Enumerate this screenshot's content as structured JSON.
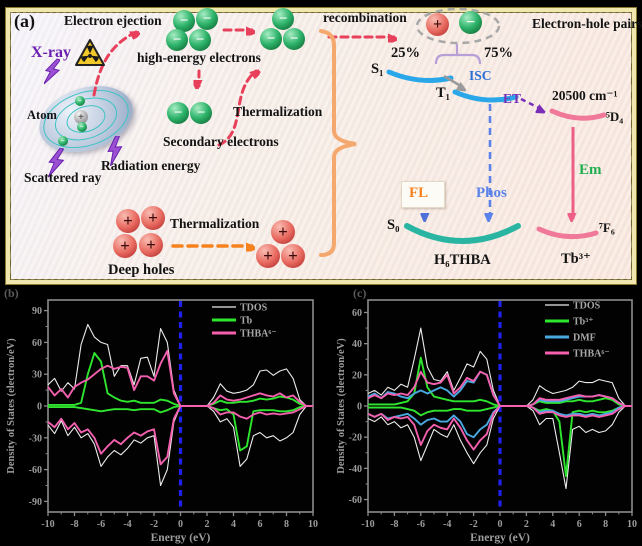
{
  "panel_a": {
    "label": "(a)",
    "electron_ejection": "Electron ejection",
    "xray": "X-ray",
    "high_energy_electrons": "high-energy electrons",
    "atom": "Atom",
    "secondary_electrons": "Secondary electrons",
    "thermalization_top": "Thermalization",
    "radiation_energy": "Radiation energy",
    "scattered_ray": "Scattered ray",
    "deep_holes": "Deep holes",
    "thermalization_bottom": "Thermalization",
    "recombination": "recombination",
    "electron_hole_pairs": "Electron-hole pairs",
    "pct_25": "25%",
    "pct_75": "75%",
    "s1": "S₁",
    "t1": "T₁",
    "s0": "S₀",
    "isc": "ISC",
    "et": "ET",
    "wavenumber": "20500 cm⁻¹",
    "d4": "⁵D₄",
    "f6": "⁷F₆",
    "fl": "FL",
    "phos": "Phos",
    "em": "Em",
    "h6thba": "H₆THBA",
    "tb3": "Tb³⁺",
    "electron_symbol": "−",
    "hole_symbol": "+",
    "nucleus_symbol": "+",
    "accent_colors": {
      "red_arrow": "#e8405a",
      "orange_arrow": "#f5821e",
      "brace": "#f5a86d",
      "purple": "#7a2fb8",
      "isc_blue": "#2a6fd6",
      "phos_blue": "#5b82ea",
      "em_green": "#1fae4e",
      "singlet_arc": "#2aa7e8",
      "ground_arc": "#2ab5a3",
      "tb_arc": "#f07898",
      "xray_purple": "#6a1fb0"
    }
  },
  "chart_data": [
    {
      "type": "line",
      "panel_label": "(b)",
      "xlabel": "Energy (eV)",
      "ylabel": "Density of States (electron/eV)",
      "xlim": [
        -10,
        10
      ],
      "ylim": [
        -100,
        100
      ],
      "x_ticks": [
        -10,
        -8,
        -6,
        -4,
        -2,
        0,
        2,
        4,
        6,
        8,
        10
      ],
      "y_ticks": [
        90,
        60,
        30,
        0,
        -30,
        -60,
        -90
      ],
      "fermi_line_x": 0,
      "fermi_color": "#2020ee",
      "legend_position": "top-right",
      "grid": false,
      "x_start": -10,
      "x_step": 0.5,
      "series": [
        {
          "name": "TDOS",
          "color": "#ececec",
          "spin_up": [
            20,
            26,
            14,
            22,
            16,
            58,
            77,
            65,
            60,
            58,
            28,
            38,
            38,
            20,
            45,
            46,
            28,
            73,
            60,
            15,
            0,
            0,
            0,
            0,
            0,
            8,
            21,
            14,
            12,
            13,
            15,
            20,
            33,
            34,
            29,
            33,
            35,
            26,
            6,
            0,
            0
          ],
          "spin_down": [
            -18,
            -26,
            -14,
            -28,
            -20,
            -30,
            -26,
            -36,
            -57,
            -48,
            -42,
            -46,
            -40,
            -32,
            -35,
            -30,
            -28,
            -75,
            -60,
            -15,
            0,
            0,
            0,
            0,
            0,
            -5,
            -15,
            -12,
            -20,
            -57,
            -50,
            -28,
            -25,
            -30,
            -28,
            -33,
            -30,
            -25,
            -8,
            0,
            0
          ]
        },
        {
          "name": "Tb",
          "color": "#2fe62f",
          "spin_up": [
            1,
            1,
            1,
            1,
            1,
            3,
            30,
            50,
            42,
            12,
            8,
            5,
            4,
            5,
            3,
            3,
            3,
            6,
            5,
            2,
            0,
            0,
            0,
            0,
            0,
            2,
            5,
            3,
            3,
            4,
            4,
            5,
            7,
            6,
            7,
            9,
            8,
            6,
            2,
            0,
            0
          ],
          "spin_down": [
            -1,
            -1,
            -1,
            -1,
            -1,
            -2,
            -3,
            -4,
            -5,
            -4,
            -3,
            -3,
            -3,
            -4,
            -3,
            -3,
            -3,
            -6,
            -4,
            -1,
            0,
            0,
            0,
            0,
            0,
            -2,
            -4,
            -3,
            -8,
            -42,
            -38,
            -5,
            -4,
            -4,
            -4,
            -5,
            -5,
            -4,
            -1,
            0,
            0
          ]
        },
        {
          "name": "THBA⁶⁻",
          "color": "#f45fae",
          "spin_up": [
            18,
            10,
            16,
            8,
            18,
            22,
            25,
            30,
            35,
            38,
            35,
            37,
            36,
            15,
            28,
            28,
            24,
            40,
            52,
            12,
            0,
            0,
            0,
            0,
            0,
            3,
            10,
            6,
            5,
            6,
            8,
            10,
            12,
            10,
            9,
            12,
            8,
            10,
            4,
            0,
            0
          ],
          "spin_down": [
            -15,
            -20,
            -12,
            -22,
            -16,
            -25,
            -22,
            -30,
            -45,
            -38,
            -32,
            -36,
            -30,
            -25,
            -28,
            -24,
            -22,
            -55,
            -48,
            -12,
            0,
            0,
            0,
            0,
            0,
            -2,
            -8,
            -6,
            -6,
            -10,
            -12,
            -8,
            -6,
            -8,
            -7,
            -8,
            -7,
            -6,
            -3,
            0,
            0
          ]
        }
      ]
    },
    {
      "type": "line",
      "panel_label": "(c)",
      "xlabel": "Energy (eV)",
      "ylabel": "Density of States (electron/eV)",
      "xlim": [
        -10,
        10
      ],
      "ylim": [
        -68,
        68
      ],
      "x_ticks": [
        -10,
        -8,
        -6,
        -4,
        -2,
        0,
        2,
        4,
        6,
        8,
        10
      ],
      "y_ticks": [
        60,
        40,
        20,
        0,
        -20,
        -40,
        -60
      ],
      "fermi_line_x": 0,
      "fermi_color": "#2020ee",
      "legend_position": "top-right",
      "grid": false,
      "x_start": -10,
      "x_step": 0.5,
      "series": [
        {
          "name": "TDOS",
          "color": "#ececec",
          "spin_up": [
            8,
            10,
            7,
            12,
            10,
            14,
            12,
            30,
            50,
            25,
            17,
            16,
            22,
            10,
            18,
            27,
            25,
            35,
            30,
            10,
            0,
            0,
            0,
            0,
            0,
            4,
            13,
            10,
            8,
            9,
            10,
            12,
            16,
            15,
            15,
            17,
            16,
            15,
            5,
            0,
            0
          ],
          "spin_down": [
            -8,
            -10,
            -7,
            -12,
            -10,
            -14,
            -12,
            -20,
            -35,
            -25,
            -15,
            -18,
            -20,
            -12,
            -22,
            -30,
            -37,
            -30,
            -25,
            -8,
            0,
            0,
            0,
            0,
            0,
            -3,
            -12,
            -8,
            -8,
            -30,
            -53,
            -15,
            -13,
            -17,
            -15,
            -17,
            -16,
            -12,
            -4,
            0,
            0
          ]
        },
        {
          "name": "Tb³⁺",
          "color": "#2fe62f",
          "spin_up": [
            1,
            1,
            1,
            1,
            1,
            2,
            3,
            8,
            31,
            12,
            6,
            5,
            4,
            3,
            3,
            3,
            3,
            4,
            3,
            1,
            0,
            0,
            0,
            0,
            0,
            1,
            3,
            2,
            2,
            2,
            3,
            3,
            4,
            3,
            3,
            4,
            5,
            4,
            1,
            0,
            0
          ],
          "spin_down": [
            -1,
            -1,
            -1,
            -1,
            -1,
            -1,
            -2,
            -3,
            -6,
            -4,
            -3,
            -3,
            -3,
            -2,
            -2,
            -3,
            -3,
            -3,
            -2,
            -1,
            0,
            0,
            0,
            0,
            0,
            -1,
            -3,
            -2,
            -3,
            -10,
            -45,
            -4,
            -3,
            -4,
            -3,
            -4,
            -4,
            -3,
            -1,
            0,
            0
          ]
        },
        {
          "name": "DMF",
          "color": "#49a8e0",
          "spin_up": [
            6,
            8,
            5,
            9,
            8,
            6,
            5,
            8,
            10,
            8,
            10,
            12,
            10,
            6,
            10,
            16,
            15,
            22,
            20,
            7,
            0,
            0,
            0,
            0,
            0,
            1,
            4,
            3,
            3,
            3,
            4,
            5,
            6,
            6,
            6,
            7,
            6,
            5,
            2,
            0,
            0
          ],
          "spin_down": [
            -5,
            -7,
            -5,
            -8,
            -7,
            -6,
            -5,
            -8,
            -12,
            -9,
            -8,
            -10,
            -10,
            -6,
            -10,
            -18,
            -20,
            -15,
            -12,
            -4,
            0,
            0,
            0,
            0,
            0,
            -1,
            -4,
            -3,
            -3,
            -5,
            -6,
            -5,
            -5,
            -6,
            -5,
            -6,
            -5,
            -4,
            -1,
            0,
            0
          ]
        },
        {
          "name": "THBA⁶⁻",
          "color": "#f45fae",
          "spin_up": [
            5,
            7,
            5,
            8,
            7,
            8,
            7,
            12,
            22,
            15,
            14,
            15,
            20,
            8,
            12,
            18,
            16,
            22,
            20,
            7,
            0,
            0,
            0,
            0,
            0,
            1,
            5,
            4,
            4,
            4,
            5,
            6,
            7,
            6,
            6,
            7,
            6,
            5,
            2,
            0,
            0
          ],
          "spin_down": [
            -5,
            -7,
            -5,
            -9,
            -7,
            -8,
            -7,
            -12,
            -25,
            -16,
            -12,
            -14,
            -15,
            -8,
            -14,
            -22,
            -28,
            -22,
            -18,
            -5,
            0,
            0,
            0,
            0,
            0,
            -1,
            -5,
            -4,
            -4,
            -6,
            -7,
            -6,
            -6,
            -7,
            -6,
            -7,
            -6,
            -5,
            -2,
            0,
            0
          ]
        }
      ]
    }
  ]
}
